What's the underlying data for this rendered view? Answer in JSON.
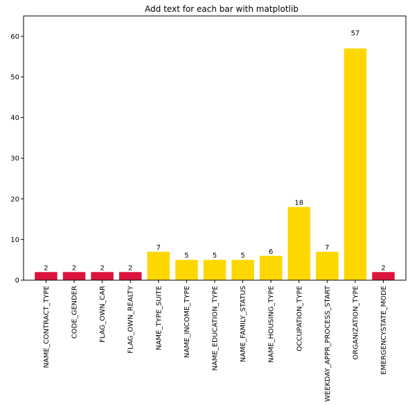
{
  "chart_data": {
    "type": "bar",
    "title": "Add text for each bar with matplotlib",
    "xlabel": "",
    "ylabel": "",
    "ylim": [
      0,
      65
    ],
    "yticks": [
      0,
      10,
      20,
      30,
      40,
      50,
      60
    ],
    "grid": false,
    "categories": [
      "NAME_CONTRACT_TYPE",
      "CODE_GENDER",
      "FLAG_OWN_CAR",
      "FLAG_OWN_REALTY",
      "NAME_TYPE_SUITE",
      "NAME_INCOME_TYPE",
      "NAME_EDUCATION_TYPE",
      "NAME_FAMILY_STATUS",
      "NAME_HOUSING_TYPE",
      "OCCUPATION_TYPE",
      "WEEKDAY_APPR_PROCESS_START",
      "ORGANIZATION_TYPE",
      "EMERGENCYSTATE_MODE"
    ],
    "values": [
      2,
      2,
      2,
      2,
      7,
      5,
      5,
      5,
      6,
      18,
      7,
      57,
      2
    ],
    "colors": [
      "#dc143c",
      "#dc143c",
      "#dc143c",
      "#dc143c",
      "#ffd700",
      "#ffd700",
      "#ffd700",
      "#ffd700",
      "#ffd700",
      "#ffd700",
      "#ffd700",
      "#ffd700",
      "#dc143c"
    ]
  }
}
